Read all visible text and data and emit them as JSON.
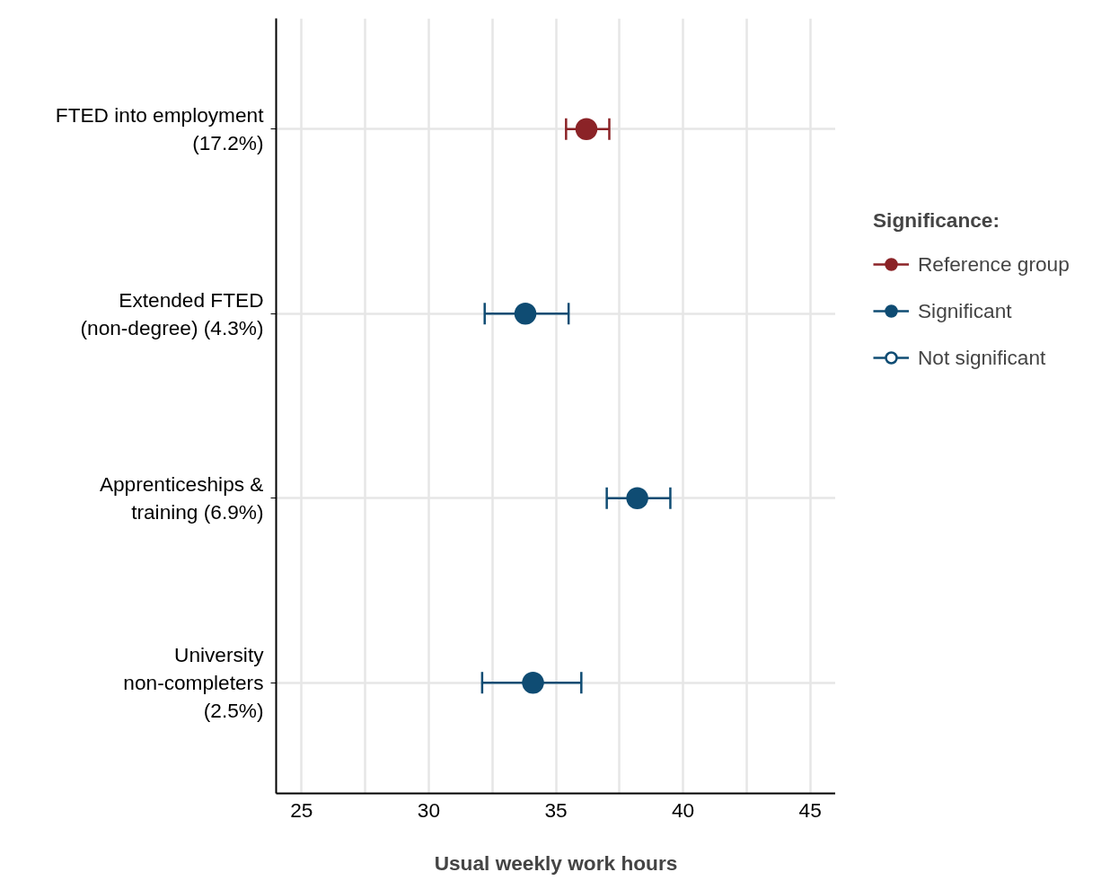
{
  "chart_data": {
    "type": "scatter",
    "orientation": "horizontal",
    "xlabel": "Usual weekly work hours",
    "legend_title": "Significance:",
    "categories": [
      "FTED into employment\n(17.2%)",
      "Extended FTED\n(non-degree) (4.3%)",
      "Apprenticeships &\ntraining (6.9%)",
      "University\nnon-completers\n(2.5%)"
    ],
    "series": [
      {
        "name": "Reference group",
        "color": "#8b2327",
        "values": [
          36.2,
          null,
          null,
          null
        ],
        "errors": [
          [
            35.4,
            37.1
          ],
          null,
          null,
          null
        ]
      },
      {
        "name": "Significant",
        "color": "#0f4c73",
        "values": [
          null,
          33.8,
          38.2,
          34.1
        ],
        "errors": [
          null,
          [
            32.2,
            35.5
          ],
          [
            37.0,
            39.5
          ],
          [
            32.1,
            36.0
          ]
        ]
      },
      {
        "name": "Not significant",
        "color": "#0f4c73",
        "values": [
          null,
          null,
          null,
          null
        ]
      }
    ],
    "xlim": [
      24,
      46
    ],
    "xticks": [
      25,
      {
        "value": 27.5,
        "label": null
      },
      30,
      {
        "value": 32.5,
        "label": null
      },
      35,
      {
        "value": 37.5,
        "label": null
      },
      40,
      {
        "value": 42.5,
        "label": null
      },
      45
    ],
    "grid": true,
    "legend": "right",
    "marker": "circle"
  }
}
